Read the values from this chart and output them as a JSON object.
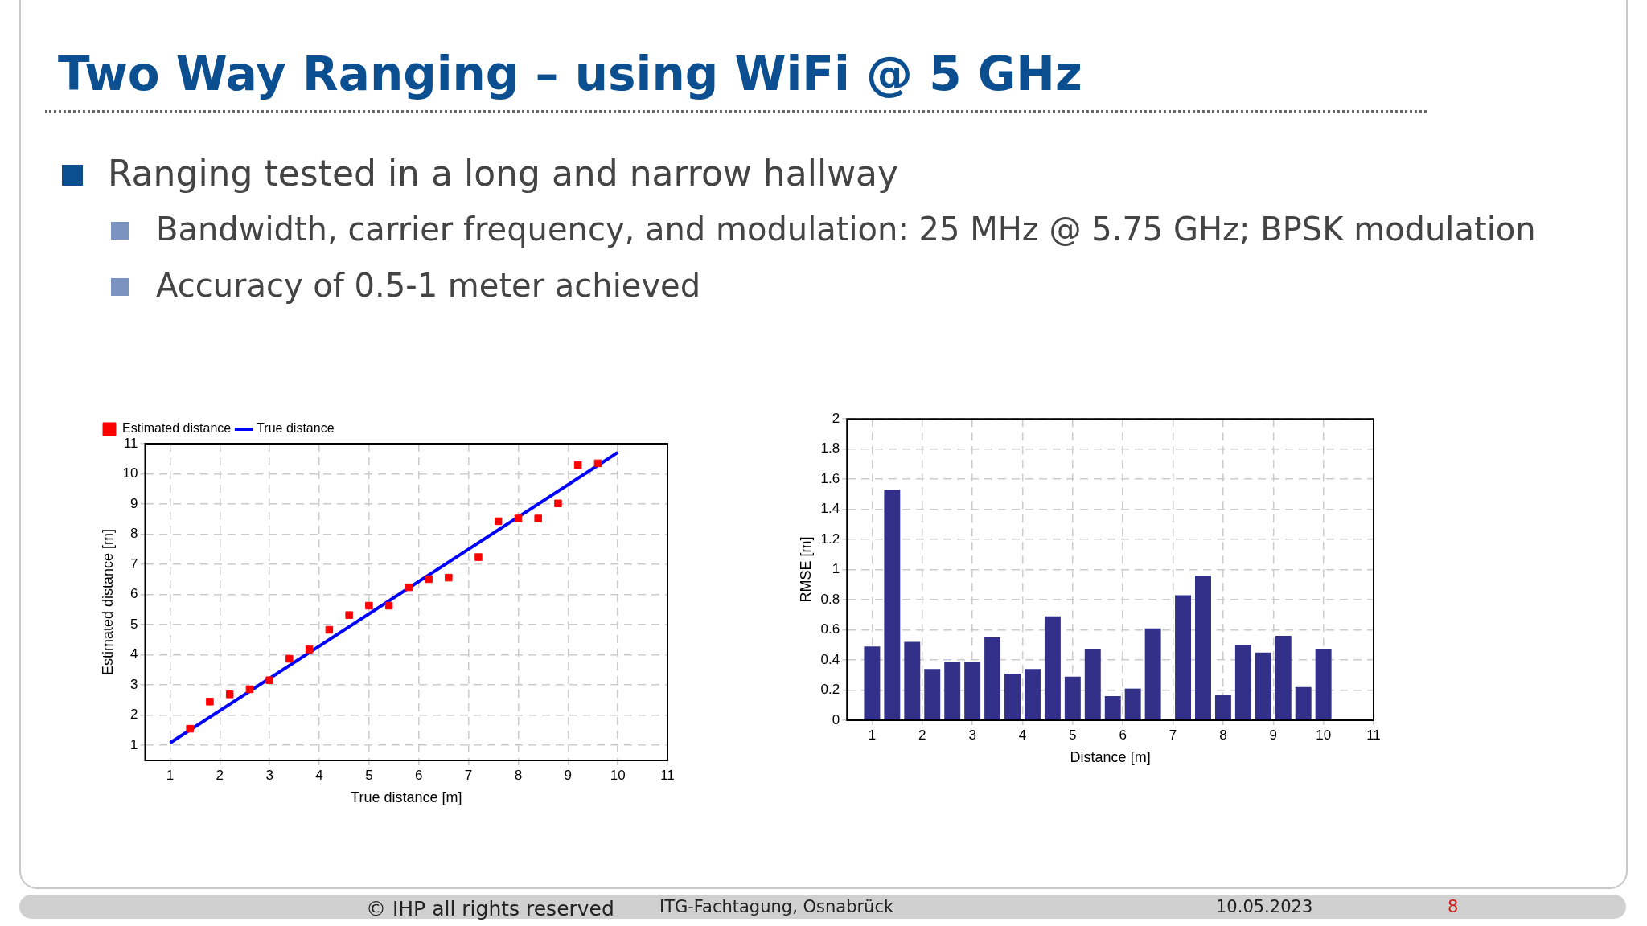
{
  "chart_data": [
    {
      "type": "scatter",
      "title": "Two Way Ranging – using WiFi @ 5 GHz",
      "xlabel": "True distance [m]",
      "ylabel": "Estimated distance [m]",
      "annotations": [
        "Ranging tested in a long and narrow hallway",
        "Bandwidth, carrier frequency, and modulation: 25 MHz @ 5.75 GHz; BPSK modulation",
        "Accuracy of 0.5-1 meter achieved"
      ],
      "xlim": [
        0.5,
        11
      ],
      "xticks": [
        1,
        2,
        3,
        4,
        5,
        6,
        7,
        8,
        9,
        10,
        11
      ],
      "ylim": [
        0.5,
        11
      ],
      "yticks": [
        1,
        2,
        3,
        4,
        5,
        6,
        7,
        8,
        9,
        10,
        11
      ],
      "grid": true,
      "legend": "top left",
      "series": [
        {
          "name": "Estimated distance",
          "type": "scatter",
          "marker": "square",
          "color": "#ff0000",
          "x": [
            1.4,
            1.8,
            2.2,
            2.6,
            3.0,
            3.4,
            3.8,
            4.2,
            4.6,
            5.0,
            5.4,
            5.8,
            6.2,
            6.6,
            7.2,
            7.6,
            8.0,
            8.4,
            8.8,
            9.2,
            9.6
          ],
          "values": [
            1.55,
            2.45,
            2.69,
            2.86,
            3.16,
            3.87,
            4.18,
            4.83,
            5.32,
            5.63,
            5.63,
            6.24,
            6.51,
            6.56,
            7.24,
            8.43,
            8.52,
            8.52,
            9.02,
            10.29,
            10.35
          ]
        },
        {
          "name": "True distance",
          "type": "line",
          "line_style": "solid",
          "color": "#0000ff",
          "x": [
            1,
            10
          ],
          "values": [
            1.08,
            10.71
          ]
        }
      ]
    },
    {
      "type": "bar",
      "xlabel": "Distance [m]",
      "ylabel": "RMSE [m]",
      "annotations": [
        "© IHP all rights reserved",
        "ITG-Fachtagung, Osnabrück",
        "10.05.2023",
        "8"
      ],
      "x": [
        1.0,
        1.4,
        1.8,
        2.2,
        2.6,
        3.0,
        3.4,
        3.8,
        4.2,
        4.6,
        5.0,
        5.4,
        5.8,
        6.2,
        6.6,
        7.2,
        7.6,
        8.0,
        8.4,
        8.8,
        9.2,
        9.6,
        10.0
      ],
      "values": [
        0.49,
        1.53,
        0.52,
        0.34,
        0.39,
        0.39,
        0.55,
        0.31,
        0.34,
        0.69,
        0.29,
        0.47,
        0.16,
        0.21,
        0.61,
        0.83,
        0.96,
        0.17,
        0.5,
        0.45,
        0.56,
        0.22,
        0.47
      ],
      "color": "#33308a",
      "xlim": [
        0.5,
        11
      ],
      "xticks": [
        1,
        2,
        3,
        4,
        5,
        6,
        7,
        8,
        9,
        10,
        11
      ],
      "ylim": [
        0,
        2
      ],
      "yticks": [
        0,
        0.2,
        0.4,
        0.6,
        0.8,
        1,
        1.2,
        1.4,
        1.6,
        1.8,
        2
      ],
      "grid": true
    }
  ]
}
